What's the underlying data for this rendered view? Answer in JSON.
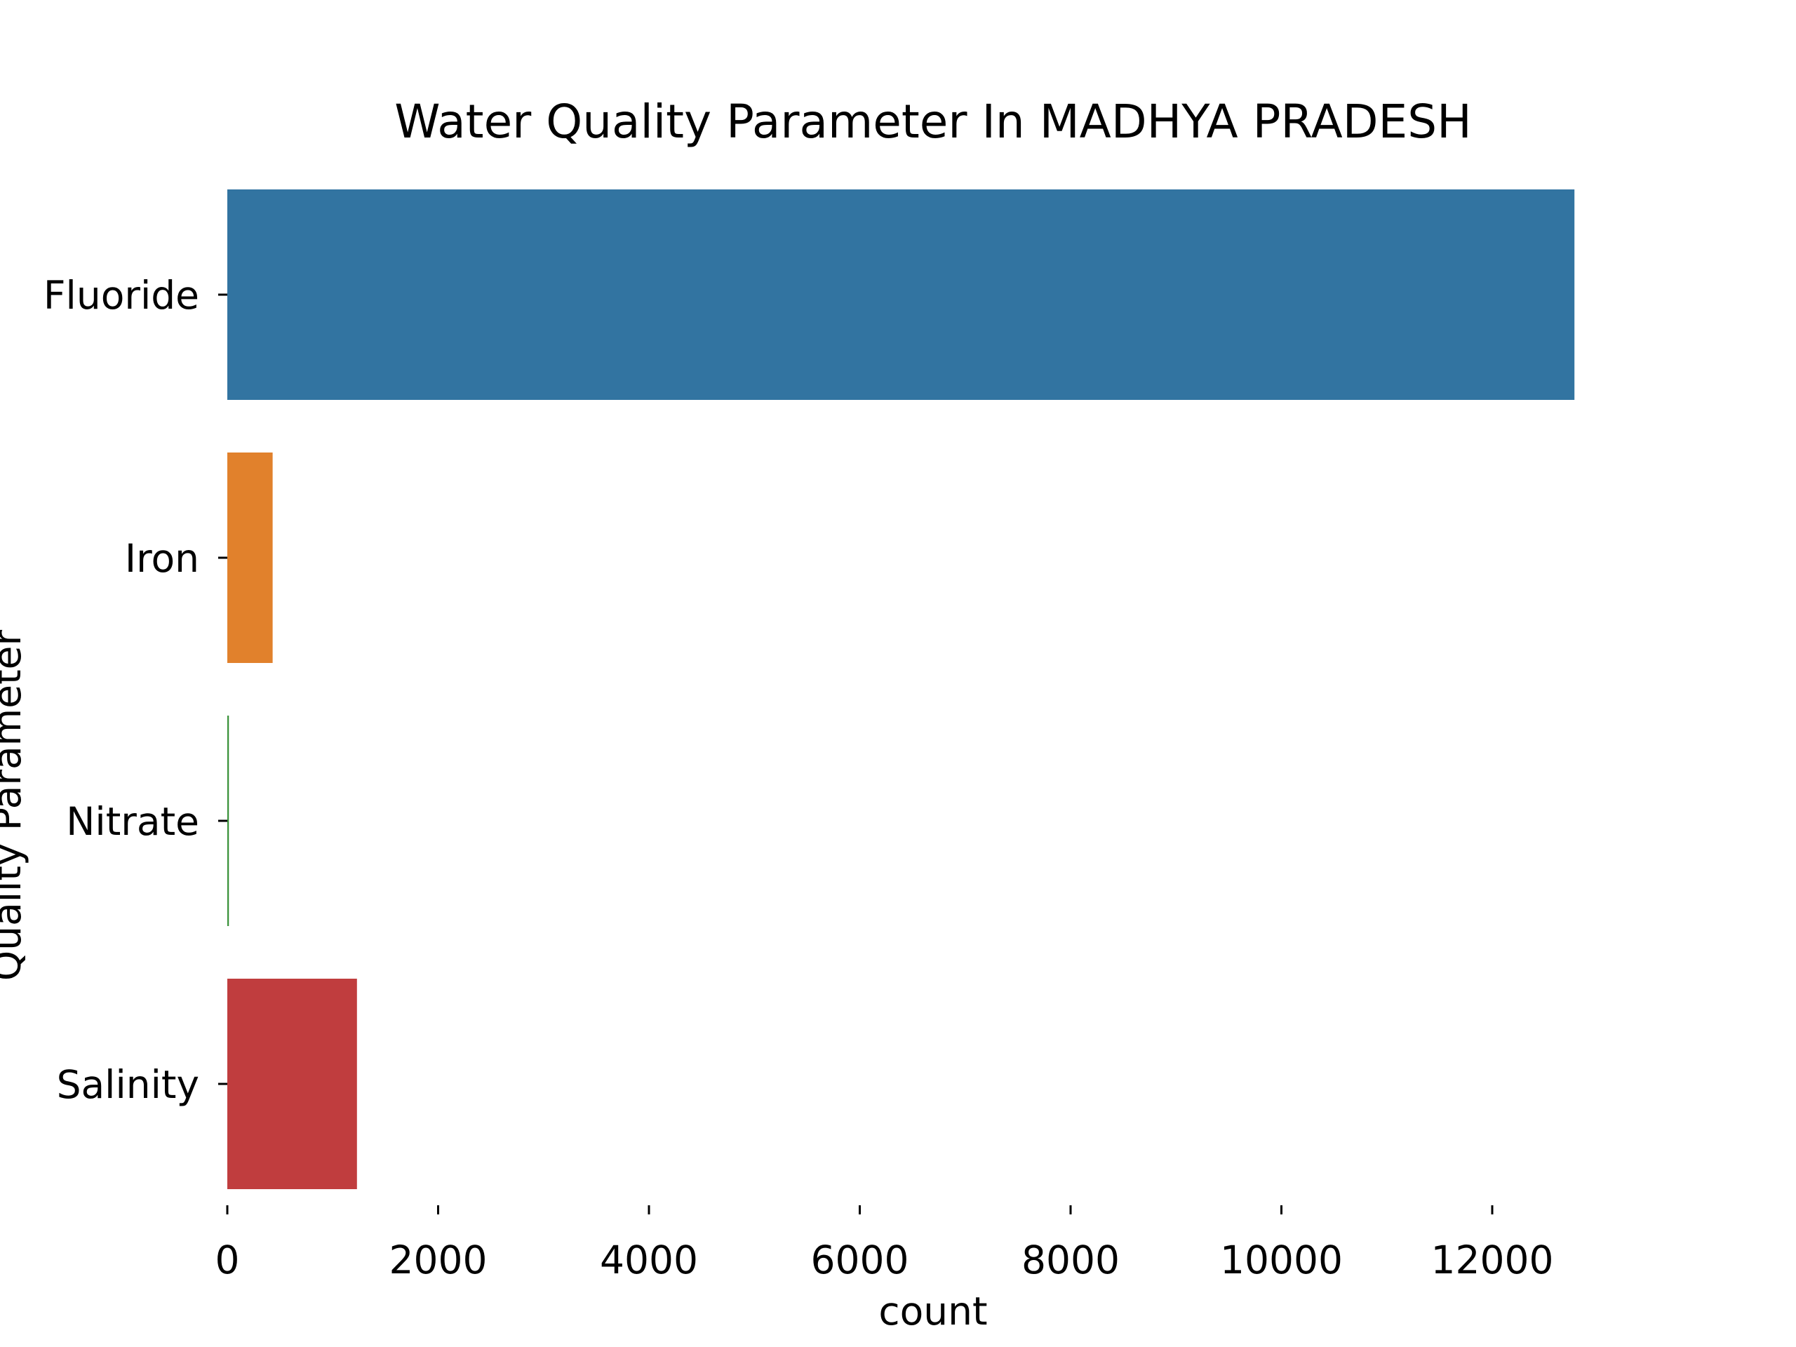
{
  "chart_data": {
    "type": "bar",
    "orientation": "horizontal",
    "title": "Water Quality Parameter In MADHYA PRADESH",
    "xlabel": "count",
    "ylabel": "Quality Parameter",
    "categories": [
      "Fluoride",
      "Iron",
      "Nitrate",
      "Salinity"
    ],
    "values": [
      12780,
      430,
      15,
      1230
    ],
    "colors": [
      "#3274a1",
      "#e1812c",
      "#3a923a",
      "#c03d3e"
    ],
    "xlim": [
      0,
      14000
    ],
    "xticks": [
      0,
      2000,
      4000,
      6000,
      8000,
      10000,
      12000
    ],
    "grid": false,
    "legend": "none"
  }
}
